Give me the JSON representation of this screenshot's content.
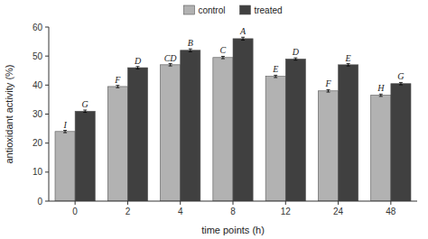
{
  "chart_data": {
    "type": "bar",
    "xlabel": "time points (h)",
    "ylabel": "antioxidant activity (%)",
    "categories": [
      "0",
      "2",
      "4",
      "8",
      "12",
      "24",
      "48"
    ],
    "series": [
      {
        "name": "control",
        "color": "#b2b2b2",
        "values": [
          24.0,
          39.5,
          47.0,
          49.5,
          43.0,
          38.0,
          36.5
        ],
        "errors": [
          0.4,
          0.4,
          0.4,
          0.4,
          0.4,
          0.4,
          0.4
        ],
        "annotations": [
          "I",
          "F",
          "CD",
          "C",
          "E",
          "F",
          "H"
        ]
      },
      {
        "name": "treated",
        "color": "#404040",
        "values": [
          31.0,
          46.0,
          52.0,
          56.0,
          49.0,
          47.0,
          40.5
        ],
        "errors": [
          0.4,
          0.4,
          0.5,
          0.5,
          0.4,
          0.4,
          0.4
        ],
        "annotations": [
          "G",
          "D",
          "B",
          "A",
          "D",
          "E",
          "G"
        ]
      }
    ],
    "ylim": [
      0,
      60
    ],
    "yticks": [
      0,
      10,
      20,
      30,
      40,
      50,
      60
    ],
    "legend": "top",
    "grid": false
  }
}
